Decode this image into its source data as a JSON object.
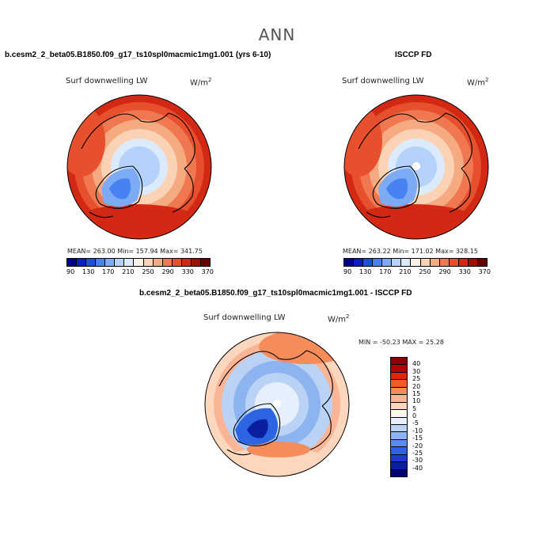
{
  "main_title": "ANN",
  "panels": [
    {
      "title": "b.cesm2_2_beta05.B1850.f09_g17_ts10spl0macmic1mg1.001 (yrs 6-10)",
      "variable": "Surf downwelling LW",
      "units": "W/m",
      "units_sup": "2",
      "stats": "MEAN= 263.00   Min= 157.94   Max= 341.75"
    },
    {
      "title": "ISCCP FD",
      "variable": "Surf downwelling LW",
      "units": "W/m",
      "units_sup": "2",
      "stats": "MEAN= 263.22   Min= 171.02   Max= 328.15"
    },
    {
      "title": "b.cesm2_2_beta05.B1850.f09_g17_ts10spl0macmic1mg1.001 - ISCCP FD",
      "variable": "Surf downwelling LW",
      "units": "W/m",
      "units_sup": "2",
      "stats": "MIN = -50.23  MAX =  25.28"
    }
  ],
  "chart_data": [
    {
      "type": "heatmap",
      "projection": "north-polar-stereographic",
      "title": "b.cesm2_2_beta05.B1850.f09_g17_ts10spl0macmic1mg1.001 (yrs 6-10)",
      "variable": "Surf downwelling LW",
      "units": "W/m2",
      "mean": 263.0,
      "min": 157.94,
      "max": 341.75,
      "colorbar_ticks": [
        "90",
        "130",
        "170",
        "210",
        "250",
        "290",
        "330",
        "370"
      ],
      "colorbar_colors": [
        "#00008b",
        "#0a1ec8",
        "#1e50dc",
        "#4682f0",
        "#7daaf5",
        "#b4d2fa",
        "#dcebfc",
        "#fff0e6",
        "#fcd2b4",
        "#f5aa82",
        "#f07850",
        "#e6502d",
        "#d22814",
        "#a01000",
        "#640000"
      ]
    },
    {
      "type": "heatmap",
      "projection": "north-polar-stereographic",
      "title": "ISCCP FD",
      "variable": "Surf downwelling LW",
      "units": "W/m2",
      "mean": 263.22,
      "min": 171.02,
      "max": 328.15,
      "colorbar_ticks": [
        "90",
        "130",
        "170",
        "210",
        "250",
        "290",
        "330",
        "370"
      ],
      "colorbar_colors": [
        "#00008b",
        "#0a1ec8",
        "#1e50dc",
        "#4682f0",
        "#7daaf5",
        "#b4d2fa",
        "#dcebfc",
        "#fff0e6",
        "#fcd2b4",
        "#f5aa82",
        "#f07850",
        "#e6502d",
        "#d22814",
        "#a01000",
        "#640000"
      ]
    },
    {
      "type": "heatmap",
      "projection": "north-polar-stereographic",
      "title": "b.cesm2_2_beta05.B1850.f09_g17_ts10spl0macmic1mg1.001 - ISCCP FD",
      "variable": "Surf downwelling LW",
      "units": "W/m2",
      "min": -50.23,
      "max": 25.28,
      "colorbar_ticks": [
        "40",
        "30",
        "25",
        "20",
        "15",
        "10",
        "5",
        "0",
        "-5",
        "-10",
        "-15",
        "-20",
        "-25",
        "-30",
        "-40"
      ],
      "colorbar_colors": [
        "#8b0000",
        "#b40000",
        "#dc2800",
        "#f05a28",
        "#f58c5a",
        "#fab496",
        "#fcd7be",
        "#fff5eb",
        "#e6f0fc",
        "#b9d2f5",
        "#8cb4f0",
        "#5a8ceb",
        "#2d64e1",
        "#1e3cc8",
        "#0a1ea0",
        "#000078"
      ]
    }
  ]
}
